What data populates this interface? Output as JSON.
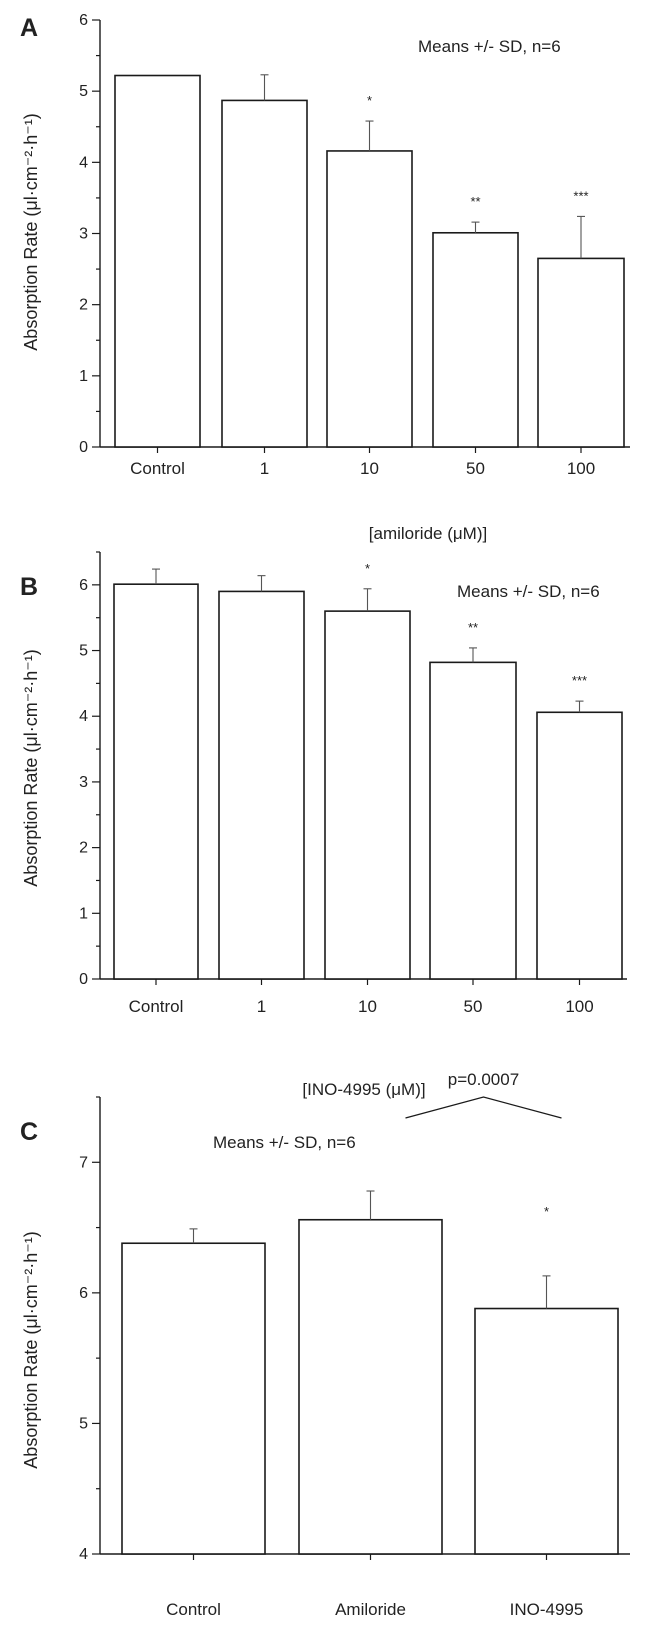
{
  "chart_data": [
    {
      "type": "bar",
      "panel": "A",
      "categories": [
        "Control",
        "1",
        "10",
        "50",
        "100"
      ],
      "values": [
        5.22,
        4.87,
        4.16,
        3.01,
        2.65
      ],
      "errors": [
        0.0,
        0.36,
        0.42,
        0.15,
        0.59
      ],
      "significance": [
        "",
        "",
        "*",
        "**",
        "***"
      ],
      "ylabel": "Absorption Rate (μl·cm⁻²·h⁻¹)",
      "xlabel": "[amiloride (μM)]",
      "ylim": [
        0,
        6
      ],
      "yticks": [
        0,
        1,
        2,
        3,
        4,
        5,
        6
      ],
      "annotation": "Means +/- SD, n=6",
      "grid": false
    },
    {
      "type": "bar",
      "panel": "B",
      "categories": [
        "Control",
        "1",
        "10",
        "50",
        "100"
      ],
      "values": [
        6.01,
        5.9,
        5.6,
        4.82,
        4.06
      ],
      "errors": [
        0.23,
        0.24,
        0.34,
        0.22,
        0.17
      ],
      "significance": [
        "",
        "",
        "*",
        "**",
        "***"
      ],
      "ylabel": "Absorption Rate (μl·cm⁻²·h⁻¹)",
      "xlabel": "[INO-4995 (μM)]",
      "ylim": [
        0,
        6.5
      ],
      "yticks": [
        0,
        1,
        2,
        3,
        4,
        5,
        6
      ],
      "annotation": "Means +/- SD, n=6",
      "grid": false
    },
    {
      "type": "bar",
      "panel": "C",
      "categories": [
        "Control",
        "Amiloride",
        "INO-4995"
      ],
      "values": [
        6.38,
        6.56,
        5.88
      ],
      "errors": [
        0.11,
        0.22,
        0.25
      ],
      "significance": [
        "",
        "",
        "*"
      ],
      "ylabel": "Absorption Rate (μl·cm⁻²·h⁻¹)",
      "xlabel": "",
      "ylim": [
        4,
        7.5
      ],
      "yticks": [
        4,
        5,
        6,
        7
      ],
      "annotation": "Means +/- SD, n=6",
      "comparison": {
        "from": 1,
        "to": 2,
        "label": "p=0.0007"
      },
      "grid": false
    }
  ]
}
